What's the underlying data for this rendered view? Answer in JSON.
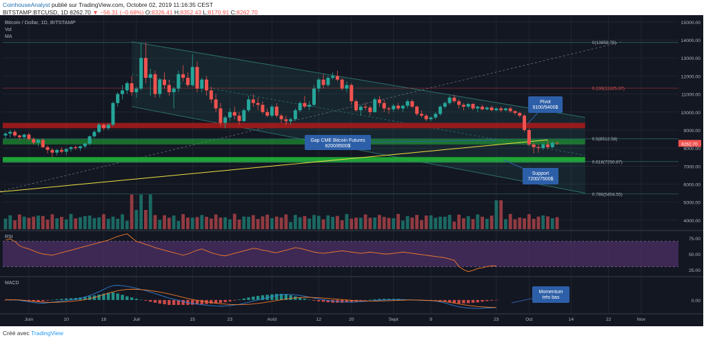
{
  "header": {
    "author": "CoinhouseAnalyst",
    "published": " publié sur TradingView.com, Octobre 02, 2019 11:16:35 CEST",
    "symbol": "BITSTAMP:BTCUSD, 1D",
    "last": "8262.70",
    "change": "▼ −56.31 (−0.68%)",
    "o_label": "O:",
    "o": "8326.41",
    "h_label": "H:",
    "h": "8352.43",
    "l_label": "L:",
    "l": "8170.91",
    "c_label": "C:",
    "c": "8262.70"
  },
  "footer": {
    "text": "Créé avec",
    "logo": "TradingView"
  },
  "colors": {
    "background": "#131722",
    "grid": "#2a2e39",
    "text": "#b2b5be",
    "bull": "#26a69a",
    "bear": "#ef5350",
    "ma": "#f0e042",
    "bull_vol": "#1e7d73",
    "bear_vol": "#b2454a",
    "rsi": "#f57c2a",
    "rsi_band": "#4a2e63",
    "macd": "#2f7fd6",
    "signal": "#f57c2a",
    "resistance": "#a31b1b",
    "support": "#21b336",
    "fib": "#2c6f6a",
    "channel": "#2c6f6a",
    "callout": "#2d5fa8"
  },
  "chart_data": {
    "type": "candlestick",
    "title": "Bitcoin / Dollar, 1D, BITSTAMP",
    "indicator_labels": [
      "Vol",
      "MA"
    ],
    "price_axis": {
      "ticks": [
        4000,
        5000,
        6000,
        7000,
        8000,
        9000,
        10000,
        11000,
        12000,
        13000,
        14000,
        15000
      ],
      "range": [
        3500,
        15300
      ]
    },
    "time_axis": {
      "labels": [
        "Juin",
        "10",
        "18",
        "Juil",
        "15",
        "23",
        "Août",
        "12",
        "20",
        "Sept",
        "9",
        "23",
        "Oct",
        "14",
        "22",
        "Nov"
      ]
    },
    "last_price": "8262.70",
    "candles_ohlc": [
      [
        8700,
        8900,
        8500,
        8800
      ],
      [
        8800,
        9000,
        8600,
        8900
      ],
      [
        8900,
        9000,
        8600,
        8700
      ],
      [
        8700,
        8750,
        8450,
        8600
      ],
      [
        8600,
        8800,
        8500,
        8750
      ],
      [
        8750,
        8850,
        8400,
        8500
      ],
      [
        8500,
        8600,
        8200,
        8300
      ],
      [
        8300,
        8500,
        8100,
        8450
      ],
      [
        8450,
        8550,
        8000,
        8050
      ],
      [
        8050,
        8150,
        7700,
        7900
      ],
      [
        7900,
        8000,
        7500,
        7750
      ],
      [
        7750,
        7950,
        7600,
        7900
      ],
      [
        7900,
        8050,
        7700,
        7800
      ],
      [
        7800,
        8000,
        7600,
        7950
      ],
      [
        7950,
        8100,
        7800,
        8050
      ],
      [
        8050,
        8150,
        7900,
        8000
      ],
      [
        8000,
        8150,
        7850,
        8100
      ],
      [
        8100,
        8300,
        8000,
        8250
      ],
      [
        8250,
        8700,
        8150,
        8650
      ],
      [
        8650,
        9000,
        8550,
        8900
      ],
      [
        8900,
        9400,
        8800,
        9300
      ],
      [
        9300,
        9350,
        9000,
        9100
      ],
      [
        9100,
        9400,
        9000,
        9300
      ],
      [
        9300,
        10600,
        9200,
        10500
      ],
      [
        10500,
        11100,
        10300,
        11000
      ],
      [
        11000,
        11500,
        10700,
        11200
      ],
      [
        11200,
        11700,
        11000,
        11600
      ],
      [
        11600,
        12000,
        10900,
        11100
      ],
      [
        11100,
        11400,
        10800,
        11300
      ],
      [
        11300,
        13800,
        11200,
        13000
      ],
      [
        13000,
        13850,
        11600,
        11900
      ],
      [
        11900,
        12400,
        10900,
        12100
      ],
      [
        12100,
        12300,
        10800,
        11000
      ],
      [
        11000,
        11900,
        10800,
        11800
      ],
      [
        11800,
        12200,
        11300,
        11500
      ],
      [
        11500,
        11800,
        10900,
        11100
      ],
      [
        11100,
        11400,
        10200,
        11300
      ],
      [
        11300,
        12300,
        11100,
        12100
      ],
      [
        12100,
        12600,
        11700,
        11900
      ],
      [
        11900,
        12200,
        11400,
        11500
      ],
      [
        11500,
        13200,
        11400,
        12500
      ],
      [
        12500,
        12800,
        11100,
        11300
      ],
      [
        11300,
        11900,
        11100,
        11800
      ],
      [
        11800,
        12000,
        10900,
        11200
      ],
      [
        11200,
        11400,
        10500,
        10700
      ],
      [
        10700,
        11000,
        10000,
        10200
      ],
      [
        10200,
        10500,
        9200,
        9400
      ],
      [
        9400,
        9800,
        9100,
        9700
      ],
      [
        9700,
        10200,
        9500,
        10000
      ],
      [
        10000,
        10300,
        9600,
        9800
      ],
      [
        9800,
        10000,
        9300,
        9500
      ],
      [
        9500,
        10200,
        9450,
        10100
      ],
      [
        10100,
        10900,
        10000,
        10700
      ],
      [
        10700,
        11000,
        10300,
        10500
      ],
      [
        10500,
        10800,
        10100,
        10400
      ],
      [
        10400,
        10600,
        9900,
        10000
      ],
      [
        10000,
        10200,
        9700,
        9800
      ],
      [
        9800,
        10400,
        9700,
        10300
      ],
      [
        10300,
        10500,
        9700,
        9800
      ],
      [
        9800,
        9900,
        9400,
        9600
      ],
      [
        9600,
        9800,
        9300,
        9500
      ],
      [
        9500,
        9700,
        9300,
        9600
      ],
      [
        9600,
        10200,
        9550,
        10100
      ],
      [
        10100,
        10600,
        10000,
        10500
      ],
      [
        10500,
        10900,
        10200,
        10300
      ],
      [
        10300,
        10600,
        10100,
        10400
      ],
      [
        10400,
        11500,
        10300,
        11300
      ],
      [
        11300,
        11900,
        11100,
        11800
      ],
      [
        11800,
        12100,
        11300,
        11500
      ],
      [
        11500,
        12000,
        11400,
        11900
      ],
      [
        11900,
        12200,
        11800,
        12000
      ],
      [
        12000,
        12300,
        11700,
        11800
      ],
      [
        11800,
        11900,
        11200,
        11300
      ],
      [
        11300,
        11700,
        11100,
        11500
      ],
      [
        11500,
        11600,
        10400,
        10600
      ],
      [
        10600,
        10700,
        10000,
        10100
      ],
      [
        10100,
        10400,
        9800,
        10300
      ],
      [
        10300,
        10500,
        10100,
        10250
      ],
      [
        10250,
        10350,
        9800,
        10000
      ],
      [
        10000,
        10800,
        9950,
        10700
      ],
      [
        10700,
        10900,
        10300,
        10500
      ],
      [
        10500,
        10700,
        10000,
        10200
      ],
      [
        10200,
        10300,
        9900,
        10150
      ],
      [
        10150,
        10450,
        10000,
        10350
      ],
      [
        10350,
        10500,
        10100,
        10200
      ],
      [
        10200,
        10400,
        10000,
        10350
      ],
      [
        10350,
        10700,
        10200,
        10600
      ],
      [
        10600,
        10700,
        10200,
        10300
      ],
      [
        10300,
        10350,
        9800,
        9900
      ],
      [
        9900,
        10100,
        9700,
        9800
      ],
      [
        9800,
        9900,
        9500,
        9600
      ],
      [
        9600,
        9750,
        9500,
        9700
      ],
      [
        9700,
        10000,
        9600,
        9900
      ],
      [
        9900,
        10400,
        9800,
        10300
      ],
      [
        10300,
        10600,
        10200,
        10500
      ],
      [
        10500,
        10900,
        10400,
        10800
      ],
      [
        10800,
        10950,
        10500,
        10600
      ],
      [
        10600,
        10700,
        10200,
        10400
      ],
      [
        10400,
        10500,
        10100,
        10300
      ],
      [
        10300,
        10500,
        10200,
        10450
      ],
      [
        10450,
        10500,
        10100,
        10200
      ],
      [
        10200,
        10350,
        10000,
        10300
      ],
      [
        10300,
        10400,
        10100,
        10150
      ],
      [
        10150,
        10300,
        10100,
        10250
      ],
      [
        10250,
        10350,
        10050,
        10100
      ],
      [
        10100,
        10250,
        10050,
        10200
      ],
      [
        10200,
        10300,
        10000,
        10100
      ],
      [
        10100,
        10250,
        10050,
        10200
      ],
      [
        10200,
        10300,
        9950,
        10050
      ],
      [
        10050,
        10100,
        9850,
        9950
      ],
      [
        9950,
        10000,
        9700,
        9800
      ],
      [
        9800,
        9900,
        8900,
        9000
      ],
      [
        9000,
        9100,
        8100,
        8200
      ],
      [
        8200,
        8300,
        7700,
        8050
      ],
      [
        8050,
        8200,
        7750,
        8000
      ],
      [
        8000,
        8300,
        7900,
        8200
      ],
      [
        8200,
        8400,
        7950,
        8050
      ],
      [
        8050,
        8350,
        8000,
        8300
      ],
      [
        8300,
        8350,
        8170,
        8262
      ]
    ],
    "ma200": {
      "label": "MA",
      "start": 5500,
      "end": 8480
    },
    "volume_series": "relative volume bars (no printed values)",
    "annotations": [
      {
        "kind": "resistance_zone",
        "range": [
          9100,
          9400
        ]
      },
      {
        "kind": "gap_zone",
        "range": [
          8200,
          8500
        ]
      },
      {
        "kind": "support_zone",
        "range": [
          7200,
          7500
        ]
      },
      {
        "kind": "fib",
        "level": 0,
        "price": 13858.78,
        "label": "0(13858.78)"
      },
      {
        "kind": "fib",
        "level": 0.236,
        "price": 11325.37,
        "label": "0.236(11325.37)"
      },
      {
        "kind": "fib",
        "level": 0.5,
        "price": 8512.58,
        "label": "0.5(8512.58)"
      },
      {
        "kind": "fib",
        "level": 0.618,
        "price": 7250.87,
        "label": "0.618(7250.87)"
      },
      {
        "kind": "fib",
        "level": 0.786,
        "price": 5454.55,
        "label": "0.786(5454.55)"
      }
    ],
    "callouts": {
      "pivot": [
        "Pivot",
        "9100/9400$"
      ],
      "gap": [
        "Gap CME Bitcoin Futures",
        "8200/8500$"
      ],
      "support": [
        "Support",
        "7200/7500$"
      ],
      "momentum": [
        "Momentum",
        "très bas"
      ]
    },
    "rsi": {
      "label": "RSI",
      "ticks": [
        25.0,
        50.0,
        75.0
      ],
      "band": [
        30,
        70
      ],
      "range": [
        15,
        85
      ],
      "values": [
        72,
        74,
        70,
        63,
        60,
        58,
        55,
        52,
        50,
        49,
        48,
        50,
        52,
        54,
        56,
        58,
        60,
        62,
        64,
        66,
        68,
        70,
        72,
        75,
        78,
        80,
        82,
        76,
        70,
        68,
        65,
        63,
        60,
        58,
        56,
        54,
        52,
        50,
        48,
        50,
        53,
        56,
        58,
        55,
        52,
        50,
        48,
        47,
        49,
        51,
        53,
        55,
        57,
        59,
        58,
        56,
        55,
        53,
        52,
        54,
        56,
        58,
        60,
        59,
        57,
        55,
        53,
        52,
        51,
        52,
        53,
        54,
        55,
        54,
        53,
        52,
        51,
        52,
        53,
        52,
        51,
        50,
        50,
        51,
        52,
        53,
        52,
        51,
        50,
        49,
        48,
        47,
        46,
        45,
        44,
        42,
        40,
        30,
        25,
        22,
        24,
        27,
        28,
        30,
        31,
        31
      ]
    },
    "macd": {
      "label": "MACD",
      "ticks": [
        0.0
      ],
      "range": [
        -700,
        1200
      ],
      "macd": [
        10,
        5,
        0,
        -20,
        -60,
        -100,
        -140,
        -160,
        -170,
        -150,
        -120,
        -90,
        -60,
        -30,
        0,
        40,
        90,
        160,
        240,
        330,
        440,
        560,
        680,
        760,
        780,
        760,
        720,
        680,
        620,
        560,
        500,
        420,
        340,
        260,
        180,
        100,
        40,
        -20,
        -80,
        -140,
        -180,
        -220,
        -250,
        -280,
        -300,
        -320,
        -330,
        -320,
        -300,
        -270,
        -230,
        -180,
        -120,
        -60,
        0,
        60,
        120,
        180,
        240,
        280,
        300,
        290,
        270,
        240,
        200,
        150,
        100,
        60,
        20,
        -20,
        -60,
        -80,
        -100,
        -110,
        -120,
        -110,
        -90,
        -70,
        -50,
        -30,
        -10,
        0,
        10,
        20,
        30,
        20,
        10,
        0,
        -10,
        -20,
        -30,
        -40,
        -60,
        -100,
        -160,
        -230,
        -300,
        -360,
        -400,
        -430,
        -440,
        -450,
        -440,
        -430,
        -420,
        -400
      ],
      "signal": [
        20,
        15,
        10,
        0,
        -20,
        -45,
        -70,
        -95,
        -115,
        -125,
        -125,
        -120,
        -110,
        -95,
        -75,
        -50,
        -20,
        20,
        70,
        130,
        200,
        280,
        360,
        430,
        490,
        530,
        560,
        570,
        565,
        550,
        530,
        500,
        460,
        420,
        370,
        320,
        260,
        200,
        140,
        80,
        30,
        -20,
        -60,
        -100,
        -140,
        -170,
        -200,
        -220,
        -235,
        -245,
        -250,
        -245,
        -230,
        -210,
        -180,
        -150,
        -110,
        -70,
        -30,
        10,
        50,
        80,
        110,
        130,
        140,
        140,
        130,
        120,
        100,
        80,
        60,
        40,
        20,
        0,
        -20,
        -35,
        -45,
        -55,
        -60,
        -60,
        -55,
        -50,
        -40,
        -30,
        -20,
        -10,
        0,
        0,
        -5,
        -10,
        -20,
        -30,
        -45,
        -65,
        -90,
        -125,
        -165,
        -210,
        -250,
        -290,
        -320,
        -345,
        -365,
        -380,
        -390,
        -395
      ]
    }
  }
}
